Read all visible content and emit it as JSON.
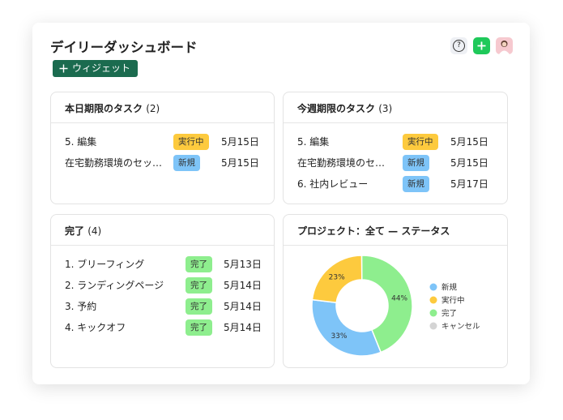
{
  "header": {
    "title": "デイリーダッシュボード",
    "help": "?",
    "add_widget": "ウィジェット"
  },
  "panels": [
    {
      "title": "本日期限のタスク",
      "count": "(2)",
      "rows": [
        {
          "task": "5. 編集",
          "status": "実行中",
          "due": "5月15日"
        },
        {
          "task": "在宅勤務環境のセッ…",
          "status": "新規",
          "due": "5月15日"
        }
      ]
    },
    {
      "title": "今週期限のタスク",
      "count": "(3)",
      "rows": [
        {
          "task": "5. 編集",
          "status": "実行中",
          "due": "5月15日"
        },
        {
          "task": "在宅勤務環境のセ…",
          "status": "新規",
          "due": "5月15日"
        },
        {
          "task": "6. 社内レビュー",
          "status": "新規",
          "due": "5月17日"
        }
      ]
    },
    {
      "title": "完了",
      "count": "(4)",
      "rows": [
        {
          "task": "1. ブリーフィング",
          "status": "完了",
          "due": "5月13日"
        },
        {
          "task": "2. ランディングページ",
          "status": "完了",
          "due": "5月14日"
        },
        {
          "task": "3. 予約",
          "status": "完了",
          "due": "5月14日"
        },
        {
          "task": "4. キックオフ",
          "status": "完了",
          "due": "5月14日"
        }
      ]
    }
  ],
  "chart_panel": {
    "title": "プロジェクト：全て — ステータス",
    "chart_data": {
      "type": "pie",
      "donut": true,
      "categories": [
        "新規",
        "実行中",
        "完了",
        "キャンセル"
      ],
      "values": [
        33,
        23,
        44,
        null
      ],
      "value_labels": [
        "33%",
        "23%",
        "44%",
        null
      ],
      "colors": [
        "#7ec4f8",
        "#fdca3e",
        "#8eee8e",
        "#d4d4d4"
      ]
    }
  }
}
